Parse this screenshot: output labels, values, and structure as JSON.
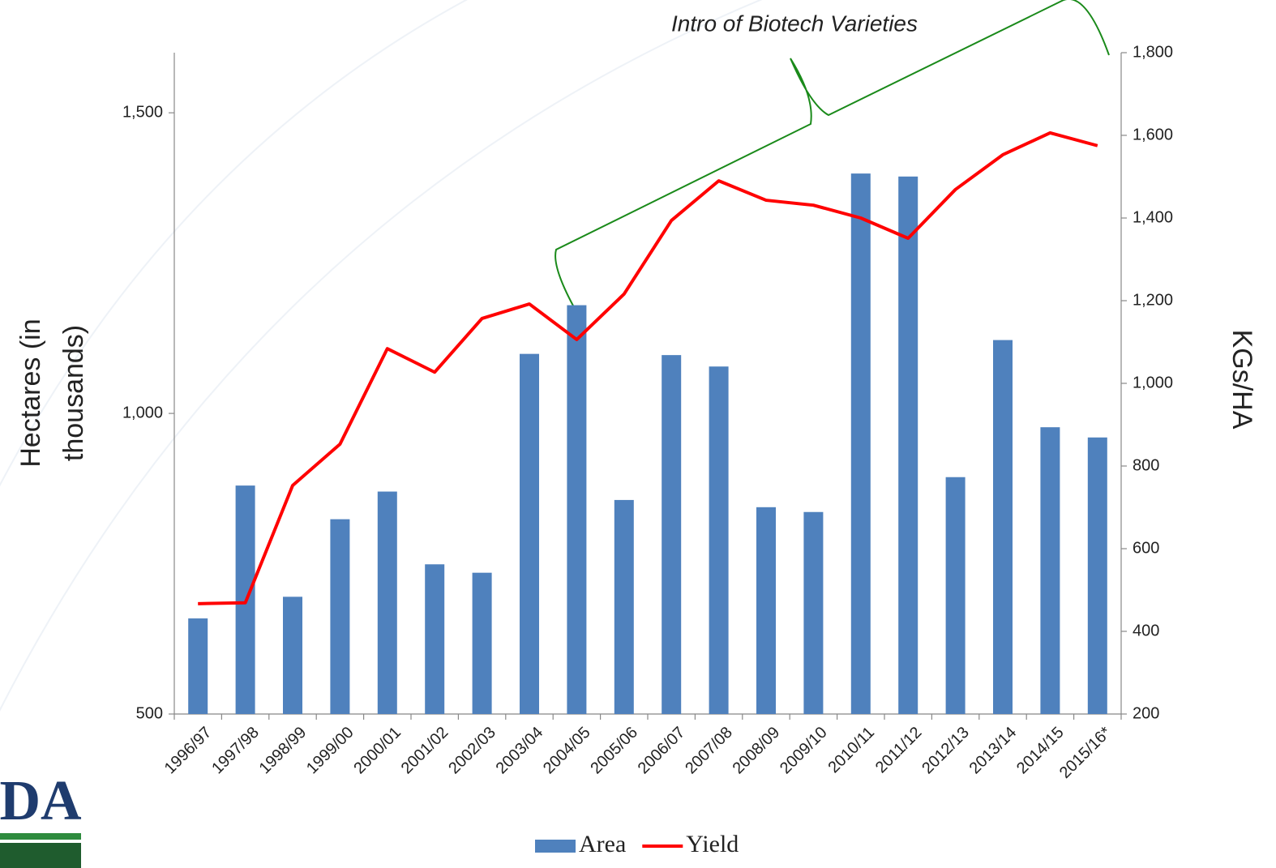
{
  "chart_data": {
    "type": "bar_line",
    "annotation": "Intro of Biotech Varieties",
    "ylabel": [
      "Hectares (in",
      "thousands)"
    ],
    "y2label": "KGs/HA",
    "logo": "DA",
    "categories": [
      "1996/97",
      "1997/98",
      "1998/99",
      "1999/00",
      "2000/01",
      "2001/02",
      "2002/03",
      "2003/04",
      "2004/05",
      "2005/06",
      "2006/07",
      "2007/08",
      "2008/09",
      "2009/10",
      "2010/11",
      "2011/12",
      "2012/13",
      "2013/14",
      "2014/15",
      "2015/16*"
    ],
    "series": [
      {
        "name": "Area",
        "type": "bar",
        "color": "#4f81bd",
        "values": [
          659,
          880,
          695,
          824,
          870,
          749,
          735,
          1099,
          1180,
          856,
          1097,
          1078,
          844,
          836,
          1399,
          1394,
          894,
          1122,
          977,
          960
        ]
      },
      {
        "name": "Yield",
        "type": "line",
        "axis": "y2",
        "color": "#ff0000",
        "values": [
          467,
          469,
          753,
          853,
          1084,
          1027,
          1157,
          1192,
          1106,
          1216,
          1394,
          1490,
          1443,
          1431,
          1400,
          1351,
          1469,
          1553,
          1606,
          1575
        ]
      }
    ],
    "ylim": [
      500,
      1600
    ],
    "yticks": [
      500,
      {
        "value": 1000,
        "label": "1,000"
      },
      {
        "value": 1500,
        "label": "1,500"
      }
    ],
    "y2lim": [
      200,
      1800
    ],
    "y2ticks": [
      200,
      400,
      600,
      800,
      {
        "value": 1000,
        "label": "1,000"
      },
      {
        "value": 1200,
        "label": "1,200"
      },
      {
        "value": 1400,
        "label": "1,400"
      },
      {
        "value": 1600,
        "label": "1,600"
      },
      {
        "value": 1800,
        "label": "1,800"
      }
    ],
    "legend": "bottom"
  }
}
